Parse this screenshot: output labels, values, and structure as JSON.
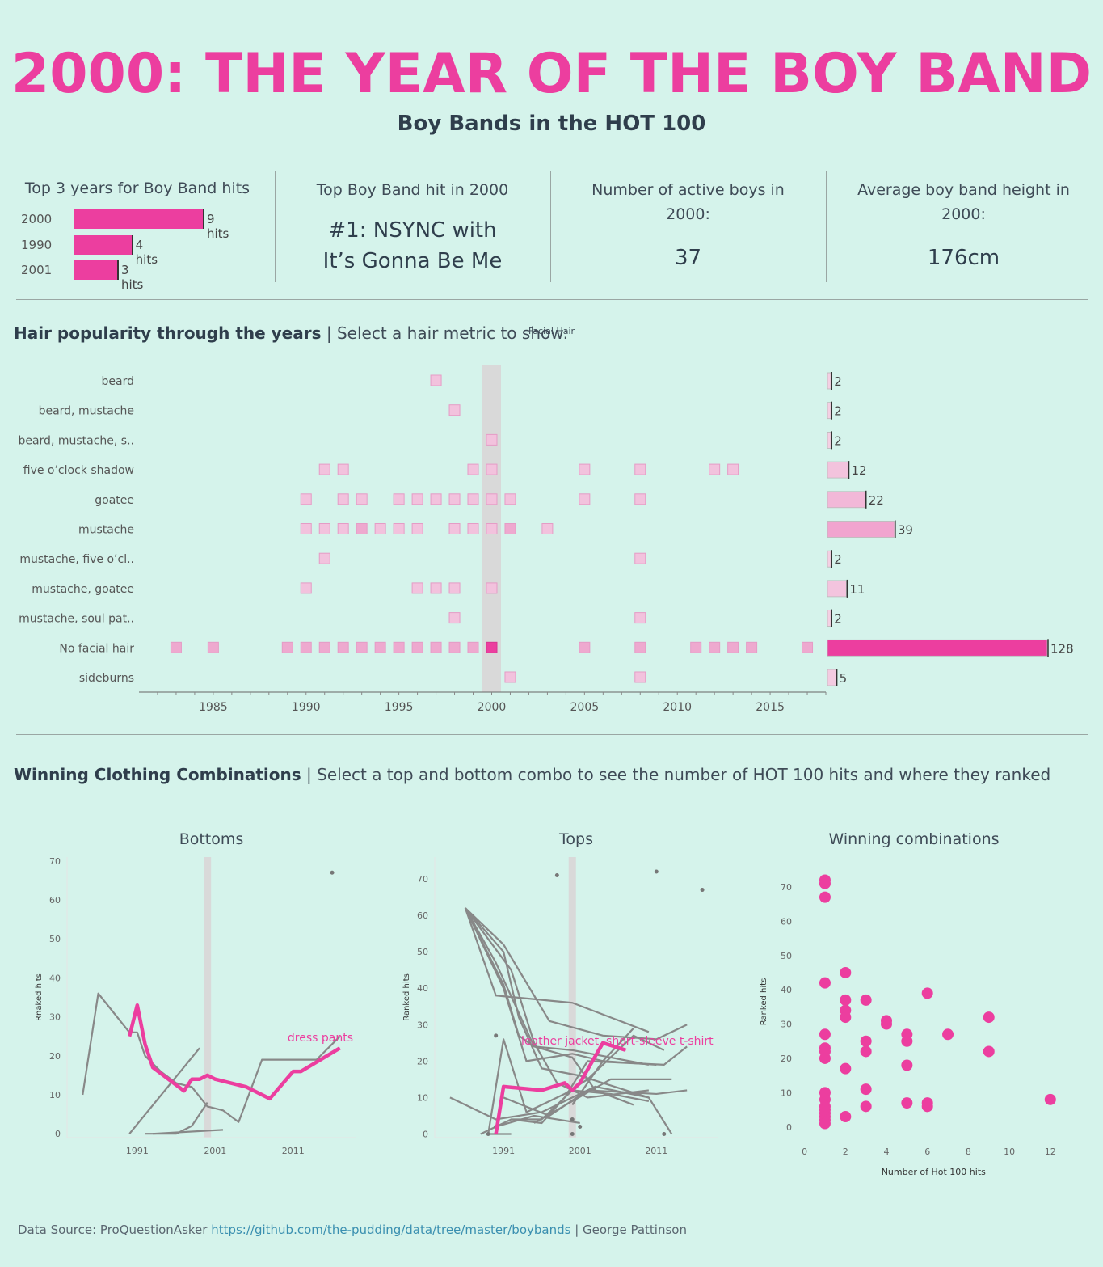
{
  "title": "2000: THE YEAR OF THE BOY BAND",
  "subtitle": "Boy Bands in the HOT 100",
  "kpis": {
    "top_years": {
      "heading": "Top 3 years for Boy Band hits",
      "rows": [
        {
          "year": "2000",
          "hits": 9,
          "label": "9 hits"
        },
        {
          "year": "1990",
          "hits": 4,
          "label": "4 hits"
        },
        {
          "year": "2001",
          "hits": 3,
          "label": "3 hits"
        }
      ]
    },
    "top_hit": {
      "heading": "Top Boy Band hit in 2000",
      "line1": "#1: NSYNC with",
      "line2": "It’s Gonna Be Me"
    },
    "active_boys": {
      "heading_line1": "Number of active boys in",
      "heading_line2": "2000:",
      "value": "37"
    },
    "avg_height": {
      "heading_line1": "Average boy band height in",
      "heading_line2": "2000:",
      "value": "176cm"
    }
  },
  "hair_section": {
    "title_bold": "Hair popularity through the years",
    "title_rest": " | Select a hair metric to show: ",
    "metric": "Facial Hair"
  },
  "clothing_section": {
    "title_bold": "Winning Clothing Combinations",
    "title_rest": " | Select a top and bottom combo to see the number of HOT 100 hits and where they ranked"
  },
  "footer": {
    "prefix": "Data Source: ProQuestionAsker ",
    "link": "https://github.com/the-pudding/data/tree/master/boybands",
    "suffix": " | George Pattinson"
  },
  "colors": {
    "accent": "#ec3e9f",
    "background": "#d5f3eb",
    "grey_line": "#888888",
    "highlight_band": "#d9d9d9"
  },
  "chart_data": [
    {
      "id": "hair",
      "type": "heatmap",
      "x_ticks": [
        1985,
        1990,
        1995,
        2000,
        2005,
        2010,
        2015
      ],
      "xlim": [
        1981,
        2018
      ],
      "highlight_year": 2000,
      "rows": [
        {
          "label": "beard",
          "total": 2,
          "years": [
            1997
          ]
        },
        {
          "label": "beard, mustache",
          "total": 2,
          "years": [
            1998
          ]
        },
        {
          "label": "beard, mustache, s..",
          "total": 2,
          "years": [
            2000
          ]
        },
        {
          "label": "five o’clock shadow",
          "total": 12,
          "years": [
            1991,
            1992,
            1999,
            2000,
            2005,
            2008,
            2012,
            2013
          ]
        },
        {
          "label": "goatee",
          "total": 22,
          "years": [
            1990,
            1992,
            1993,
            1995,
            1996,
            1997,
            1998,
            1999,
            2000,
            2001,
            2005,
            2008
          ]
        },
        {
          "label": "mustache",
          "total": 39,
          "years": [
            1990,
            1991,
            1992,
            1993,
            1994,
            1995,
            1996,
            1998,
            1999,
            2000,
            2001,
            2003
          ]
        },
        {
          "label": "mustache, five o’cl..",
          "total": 2,
          "years": [
            1991,
            2008
          ]
        },
        {
          "label": "mustache, goatee",
          "total": 11,
          "years": [
            1990,
            1996,
            1997,
            1998,
            2000
          ]
        },
        {
          "label": "mustache, soul pat..",
          "total": 2,
          "years": [
            1998,
            2008
          ]
        },
        {
          "label": "No facial hair",
          "total": 128,
          "years": [
            1983,
            1985,
            1989,
            1990,
            1991,
            1992,
            1993,
            1994,
            1995,
            1996,
            1997,
            1998,
            1999,
            2000,
            2005,
            2008,
            2011,
            2012,
            2013,
            2014,
            2017
          ]
        },
        {
          "label": "sideburns",
          "total": 5,
          "years": [
            2001,
            2008
          ]
        }
      ]
    },
    {
      "id": "bottoms",
      "type": "line",
      "title": "Bottoms",
      "ylabel": "Rnaked hits",
      "x_ticks": [
        1991,
        2001,
        2011
      ],
      "y_ticks": [
        0,
        10,
        20,
        30,
        40,
        50,
        60,
        70
      ],
      "xlim": [
        1982,
        2019
      ],
      "ylim": [
        -1,
        71
      ],
      "highlight_year": 2000,
      "highlight_label": "dress pants",
      "highlight_series": [
        [
          1990,
          25
        ],
        [
          1991,
          33
        ],
        [
          1992,
          23
        ],
        [
          1993,
          17
        ],
        [
          1995,
          14
        ],
        [
          1997,
          11
        ],
        [
          1998,
          14
        ],
        [
          1999,
          14
        ],
        [
          2000,
          15
        ],
        [
          2001,
          14
        ],
        [
          2005,
          12
        ],
        [
          2008,
          9
        ],
        [
          2011,
          16
        ],
        [
          2012,
          16
        ],
        [
          2017,
          22
        ]
      ],
      "grey_series": [
        [
          [
            1984,
            10
          ],
          [
            1986,
            36
          ],
          [
            1990,
            26
          ],
          [
            1991,
            26
          ],
          [
            1992,
            20
          ],
          [
            1994,
            16
          ],
          [
            1996,
            13
          ],
          [
            1998,
            12
          ],
          [
            2000,
            7
          ],
          [
            2002,
            6
          ],
          [
            2004,
            3
          ],
          [
            2007,
            19
          ],
          [
            2012,
            19
          ],
          [
            2014,
            19
          ],
          [
            2017,
            25
          ]
        ],
        [
          [
            1990,
            0
          ],
          [
            1999,
            22
          ]
        ],
        [
          [
            1992,
            0
          ],
          [
            1996,
            0
          ],
          [
            1998,
            2
          ],
          [
            2000,
            8
          ]
        ],
        [
          [
            1993,
            0
          ],
          [
            2002,
            1
          ]
        ]
      ],
      "points": [
        [
          2016,
          67
        ]
      ]
    },
    {
      "id": "tops",
      "type": "line",
      "title": "Tops",
      "ylabel": "Ranked hits",
      "x_ticks": [
        1991,
        2001,
        2011
      ],
      "y_ticks": [
        0,
        10,
        20,
        30,
        40,
        50,
        60,
        70
      ],
      "xlim": [
        1982,
        2019
      ],
      "ylim": [
        -1,
        76
      ],
      "highlight_year": 2000,
      "highlight_label": "leather jacket, short-sleeve t-shirt",
      "highlight_series": [
        [
          1990,
          0
        ],
        [
          1991,
          13
        ],
        [
          1996,
          12
        ],
        [
          1999,
          14
        ],
        [
          2000,
          12
        ],
        [
          2001,
          14
        ],
        [
          2004,
          25
        ],
        [
          2007,
          23
        ]
      ],
      "grey_series": [
        [
          [
            1986,
            62
          ],
          [
            1990,
            38
          ],
          [
            2000,
            36
          ],
          [
            2010,
            28
          ]
        ],
        [
          [
            1986,
            62
          ],
          [
            1991,
            41
          ],
          [
            1993,
            27
          ],
          [
            1995,
            24
          ],
          [
            2000,
            23
          ],
          [
            2010,
            19
          ]
        ],
        [
          [
            1986,
            62
          ],
          [
            1992,
            45
          ],
          [
            1995,
            25
          ],
          [
            1998,
            14
          ],
          [
            2002,
            10
          ],
          [
            2010,
            12
          ]
        ],
        [
          [
            1986,
            62
          ],
          [
            1991,
            50
          ],
          [
            1993,
            32
          ],
          [
            1996,
            18
          ],
          [
            2001,
            16
          ],
          [
            2010,
            10
          ],
          [
            2013,
            0
          ]
        ],
        [
          [
            1986,
            62
          ],
          [
            1991,
            52
          ],
          [
            1997,
            31
          ],
          [
            2004,
            27
          ],
          [
            2011,
            26
          ],
          [
            2015,
            30
          ]
        ],
        [
          [
            1986,
            62
          ],
          [
            1990,
            47
          ],
          [
            1995,
            24
          ],
          [
            2000,
            21
          ],
          [
            2003,
            12
          ],
          [
            2008,
            8
          ]
        ],
        [
          [
            1986,
            62
          ],
          [
            1991,
            40
          ],
          [
            1994,
            20
          ],
          [
            2000,
            22
          ],
          [
            2004,
            20
          ],
          [
            2011,
            19
          ]
        ],
        [
          [
            1984,
            10
          ],
          [
            1990,
            4
          ],
          [
            1996,
            6
          ],
          [
            2000,
            10
          ],
          [
            2003,
            13
          ],
          [
            2010,
            10
          ]
        ],
        [
          [
            1988,
            0
          ],
          [
            1992,
            4
          ],
          [
            1996,
            3
          ],
          [
            1999,
            10
          ],
          [
            2002,
            20
          ],
          [
            2012,
            19
          ],
          [
            2015,
            24
          ]
        ],
        [
          [
            1989,
            0
          ],
          [
            1991,
            26
          ],
          [
            1994,
            6
          ],
          [
            1999,
            11
          ],
          [
            2002,
            15
          ],
          [
            2008,
            27
          ],
          [
            2012,
            23
          ]
        ],
        [
          [
            1990,
            2
          ],
          [
            1995,
            5
          ],
          [
            2001,
            3
          ]
        ],
        [
          [
            1991,
            10
          ],
          [
            1997,
            5
          ],
          [
            2002,
            12
          ],
          [
            2011,
            11
          ],
          [
            2015,
            12
          ]
        ],
        [
          [
            1992,
            4
          ],
          [
            1996,
            4
          ],
          [
            2000,
            12
          ],
          [
            2005,
            11
          ],
          [
            2010,
            9
          ]
        ],
        [
          [
            1989,
            0
          ],
          [
            1992,
            0
          ]
        ],
        [
          [
            2000,
            8
          ],
          [
            2004,
            20
          ],
          [
            2008,
            29
          ]
        ],
        [
          [
            1995,
            3
          ],
          [
            2000,
            9
          ],
          [
            2005,
            15
          ],
          [
            2013,
            15
          ]
        ]
      ],
      "points": [
        [
          1998,
          71
        ],
        [
          2011,
          72
        ],
        [
          2017,
          67
        ],
        [
          1990,
          27
        ],
        [
          1990,
          2
        ],
        [
          2001,
          2
        ],
        [
          2000,
          0
        ],
        [
          2000,
          4
        ],
        [
          2012,
          0
        ],
        [
          1989,
          0
        ]
      ]
    },
    {
      "id": "combinations",
      "type": "scatter",
      "title": "Winning combinations",
      "xlabel": "Number of Hot 100 hits",
      "ylabel": "Ranked hits",
      "x_ticks": [
        0,
        2,
        4,
        6,
        8,
        10,
        12
      ],
      "y_ticks": [
        0,
        10,
        20,
        30,
        40,
        50,
        60,
        70
      ],
      "xlim": [
        -0.3,
        12.6
      ],
      "ylim": [
        -1,
        74
      ],
      "points": [
        [
          1,
          72
        ],
        [
          1,
          71
        ],
        [
          1,
          67
        ],
        [
          1,
          42
        ],
        [
          1,
          27
        ],
        [
          1,
          23
        ],
        [
          1,
          22
        ],
        [
          1,
          20
        ],
        [
          1,
          10
        ],
        [
          1,
          8
        ],
        [
          1,
          6
        ],
        [
          1,
          5
        ],
        [
          1,
          4
        ],
        [
          1,
          3
        ],
        [
          1,
          2
        ],
        [
          1,
          1
        ],
        [
          2,
          45
        ],
        [
          2,
          37
        ],
        [
          2,
          34
        ],
        [
          2,
          32
        ],
        [
          2,
          17
        ],
        [
          2,
          3
        ],
        [
          3,
          37
        ],
        [
          3,
          25
        ],
        [
          3,
          22
        ],
        [
          3,
          11
        ],
        [
          3,
          6
        ],
        [
          4,
          31
        ],
        [
          4,
          30
        ],
        [
          5,
          27
        ],
        [
          5,
          25
        ],
        [
          5,
          18
        ],
        [
          5,
          7
        ],
        [
          6,
          39
        ],
        [
          6,
          7
        ],
        [
          6,
          6
        ],
        [
          7,
          27
        ],
        [
          9,
          32
        ],
        [
          9,
          22
        ],
        [
          12,
          8
        ]
      ]
    }
  ]
}
